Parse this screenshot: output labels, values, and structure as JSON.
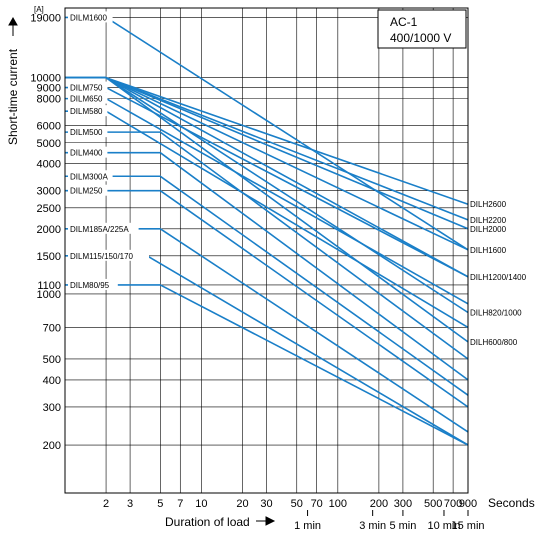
{
  "chart_data": {
    "type": "line",
    "title": "",
    "box_lines": [
      "AC-1",
      "400/1000 V"
    ],
    "ylabel": "Short-time current",
    "yunit": "[A]",
    "xlabel": "Duration of load",
    "xunit": "Seconds",
    "x_scale": "log",
    "y_scale": "log",
    "xlim": [
      1,
      900
    ],
    "ylim": [
      120,
      21000
    ],
    "grid": true,
    "x_ticks": [
      2,
      3,
      5,
      7,
      10,
      20,
      30,
      50,
      70,
      100,
      200,
      300,
      500,
      700,
      900
    ],
    "x_tick_labels": [
      "2",
      "3",
      "5",
      "7",
      "10",
      "20",
      "30",
      "50",
      "70",
      "100",
      "200",
      "300",
      "500",
      "700",
      "900"
    ],
    "x_time_markers": [
      {
        "x": 60,
        "label": "1 min"
      },
      {
        "x": 180,
        "label": "3 min"
      },
      {
        "x": 300,
        "label": "5 min"
      },
      {
        "x": 600,
        "label": "10 min"
      },
      {
        "x": 900,
        "label": "15 min"
      }
    ],
    "y_ticks": [
      200,
      300,
      400,
      500,
      700,
      1000,
      1100,
      1500,
      2000,
      2500,
      3000,
      4000,
      5000,
      6000,
      8000,
      9000,
      10000,
      19000
    ],
    "y_tick_labels": [
      "200",
      "300",
      "400",
      "500",
      "700",
      "1000",
      "1100",
      "1500",
      "2000",
      "2500",
      "3000",
      "4000",
      "5000",
      "6000",
      "8000",
      "9000",
      "10000",
      "19000"
    ],
    "series": [
      {
        "name": "DILM1600",
        "points": [
          [
            2,
            19000
          ],
          [
            900,
            1600
          ]
        ]
      },
      {
        "name": "DILH2600",
        "points": [
          [
            2,
            10000
          ],
          [
            900,
            2600
          ]
        ]
      },
      {
        "name": "DILH2200",
        "points": [
          [
            2,
            10000
          ],
          [
            900,
            2200
          ]
        ]
      },
      {
        "name": "DILH2000",
        "points": [
          [
            2,
            10000
          ],
          [
            900,
            2000
          ]
        ]
      },
      {
        "name": "DILH1600",
        "points": [
          [
            2,
            10000
          ],
          [
            900,
            1600
          ]
        ]
      },
      {
        "name": "DILM750",
        "points": [
          [
            2,
            9000
          ],
          [
            900,
            1200
          ]
        ]
      },
      {
        "name": "DILH1200/1400",
        "points": [
          [
            2,
            10000
          ],
          [
            900,
            1200
          ]
        ]
      },
      {
        "name": "DILM650",
        "points": [
          [
            2,
            8000
          ],
          [
            900,
            900
          ]
        ]
      },
      {
        "name": "DILH820/1000",
        "points": [
          [
            2,
            10000
          ],
          [
            900,
            820
          ]
        ]
      },
      {
        "name": "DILM580",
        "points": [
          [
            2,
            7000
          ],
          [
            900,
            700
          ]
        ]
      },
      {
        "name": "DILH600/800",
        "points": [
          [
            2,
            10000
          ],
          [
            900,
            600
          ]
        ]
      },
      {
        "name": "DILM500",
        "points": [
          [
            5,
            5600
          ],
          [
            900,
            500
          ]
        ]
      },
      {
        "name": "DILM400",
        "points": [
          [
            5,
            4500
          ],
          [
            900,
            400
          ]
        ]
      },
      {
        "name": "DILM300A",
        "points": [
          [
            5,
            3500
          ],
          [
            900,
            340
          ]
        ]
      },
      {
        "name": "DILM250",
        "points": [
          [
            5,
            3000
          ],
          [
            900,
            300
          ]
        ]
      },
      {
        "name": "DILM185A/225A",
        "points": [
          [
            5,
            2000
          ],
          [
            900,
            230
          ]
        ]
      },
      {
        "name": "DILM115/150/170",
        "points": [
          [
            4,
            1500
          ],
          [
            900,
            200
          ]
        ]
      },
      {
        "name": "DILM80/95",
        "points": [
          [
            5,
            1100
          ],
          [
            900,
            200
          ]
        ]
      }
    ]
  }
}
